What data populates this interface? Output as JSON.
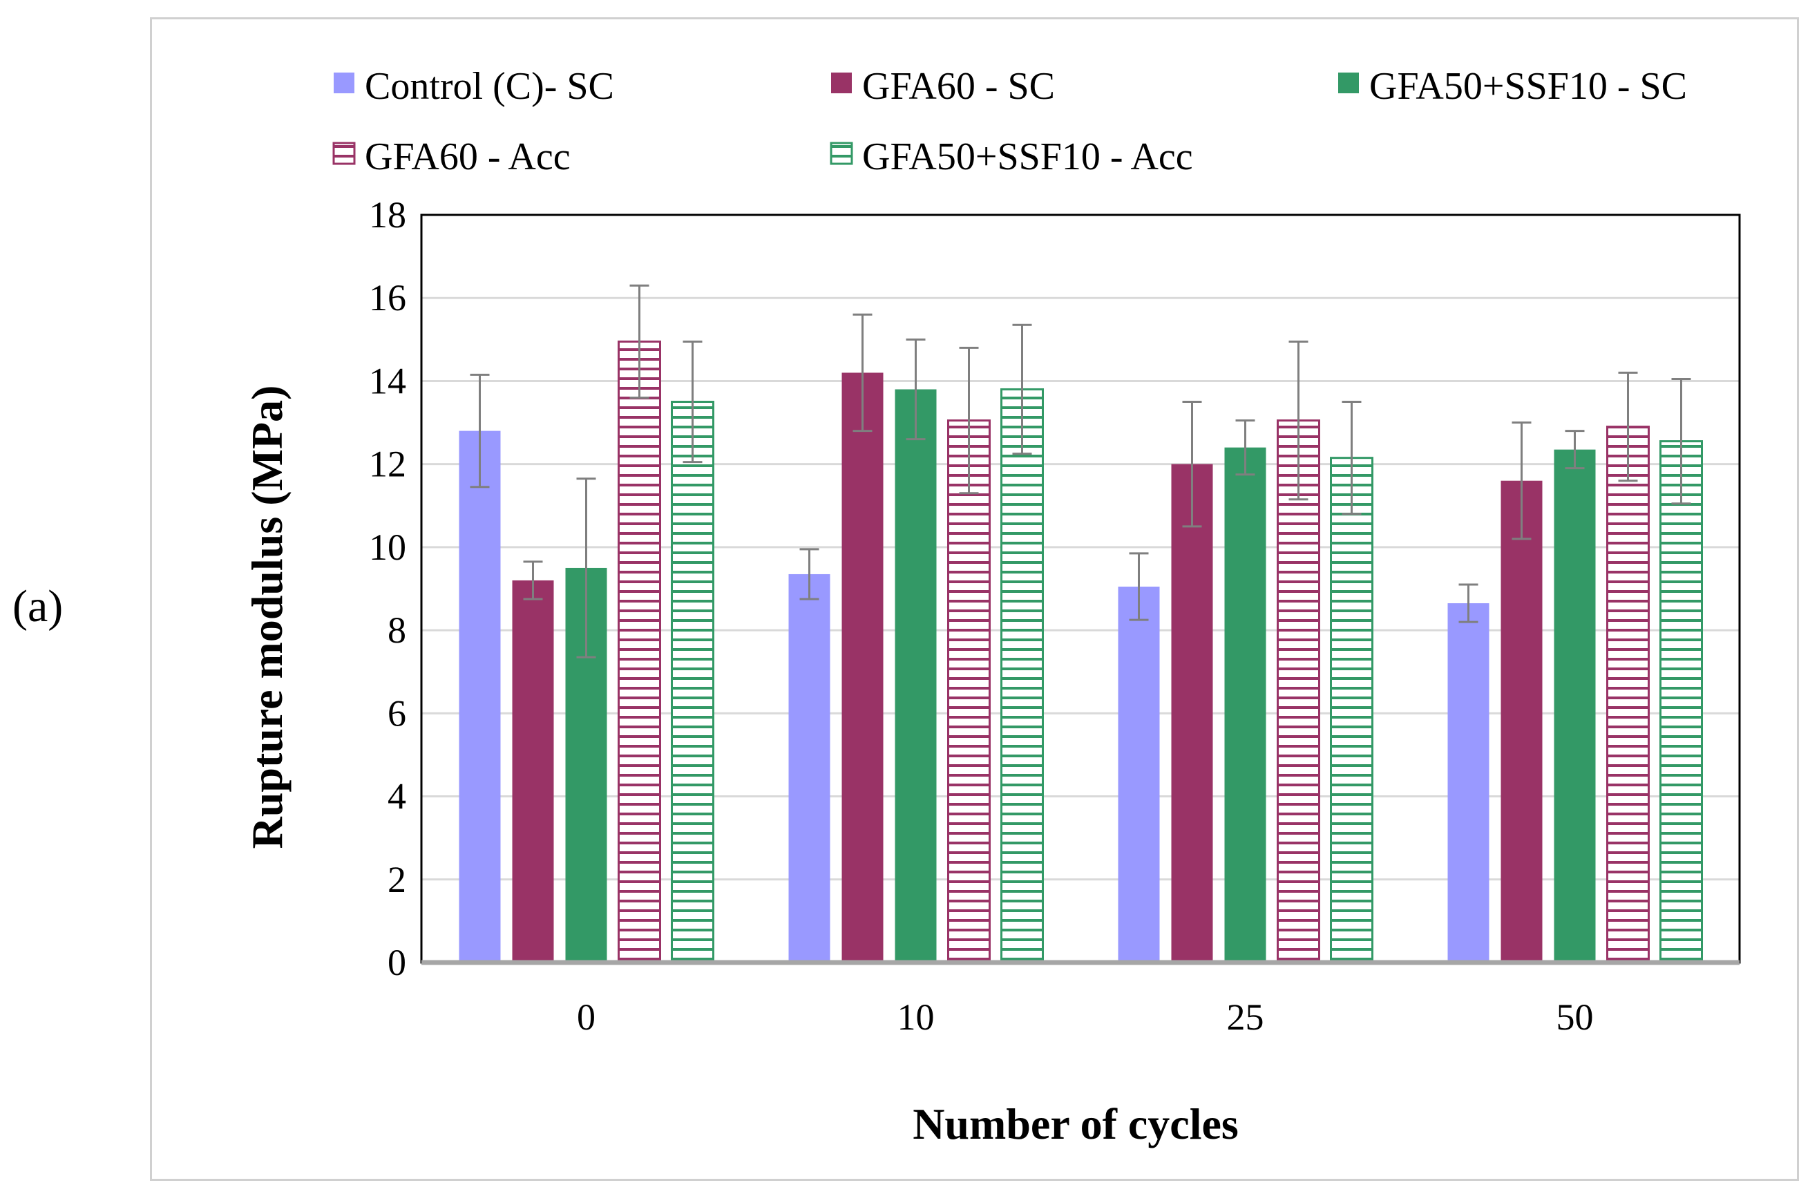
{
  "panel_label": "(a)",
  "chart_data": {
    "type": "bar",
    "title": "",
    "xlabel": "Number  of cycles",
    "ylabel": "Rupture  modulus  (MPa)",
    "ylim": [
      0,
      18
    ],
    "yticks": [
      0,
      2,
      4,
      6,
      8,
      10,
      12,
      14,
      16,
      18
    ],
    "grid": true,
    "legend_position": "top",
    "categories": [
      "0",
      "10",
      "25",
      "50"
    ],
    "series": [
      {
        "name": "Control (C)- SC",
        "style": "solid",
        "color": "#9999ff",
        "values": [
          12.8,
          9.35,
          9.05,
          8.65
        ],
        "errors": [
          1.35,
          0.6,
          0.8,
          0.45
        ]
      },
      {
        "name": "GFA60 - SC",
        "style": "solid",
        "color": "#993366",
        "values": [
          9.2,
          14.2,
          12.0,
          11.6
        ],
        "errors": [
          0.45,
          1.4,
          1.5,
          1.4
        ]
      },
      {
        "name": "GFA50+SSF10 - SC",
        "style": "solid",
        "color": "#339966",
        "values": [
          9.5,
          13.8,
          12.4,
          12.35
        ],
        "errors": [
          2.15,
          1.2,
          0.65,
          0.45
        ]
      },
      {
        "name": "GFA60 - Acc",
        "style": "hatched",
        "color": "#993366",
        "values": [
          14.95,
          13.05,
          13.05,
          12.9
        ],
        "errors": [
          1.35,
          1.75,
          1.9,
          1.3
        ]
      },
      {
        "name": "GFA50+SSF10 - Acc",
        "style": "hatched",
        "color": "#339966",
        "values": [
          13.5,
          13.8,
          12.15,
          12.55
        ],
        "errors": [
          1.45,
          1.55,
          1.35,
          1.5
        ]
      }
    ]
  }
}
